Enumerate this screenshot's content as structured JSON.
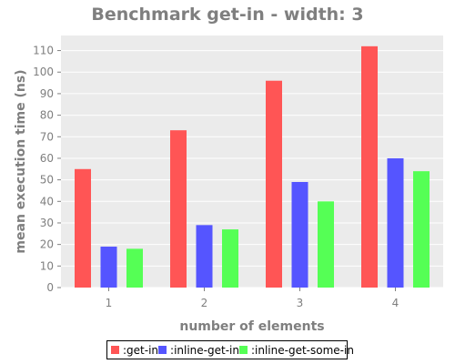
{
  "chart_data": {
    "type": "bar",
    "title": "Benchmark get-in - width: 3",
    "xlabel": "number of elements",
    "ylabel": "mean execution time (ns)",
    "categories": [
      "1",
      "2",
      "3",
      "4"
    ],
    "ylim": [
      0,
      117
    ],
    "yticks": [
      0,
      10,
      20,
      30,
      40,
      50,
      60,
      70,
      80,
      90,
      100,
      110
    ],
    "grid": true,
    "legend_position": "bottom",
    "background": "#ebebeb",
    "series": [
      {
        "name": ":get-in",
        "color": "#ff5555",
        "values": [
          55,
          73,
          96,
          112
        ]
      },
      {
        "name": ":inline-get-in",
        "color": "#5555ff",
        "values": [
          19,
          29,
          49,
          60
        ]
      },
      {
        "name": ":inline-get-some-in",
        "color": "#55ff55",
        "values": [
          18,
          27,
          40,
          54
        ]
      }
    ]
  }
}
